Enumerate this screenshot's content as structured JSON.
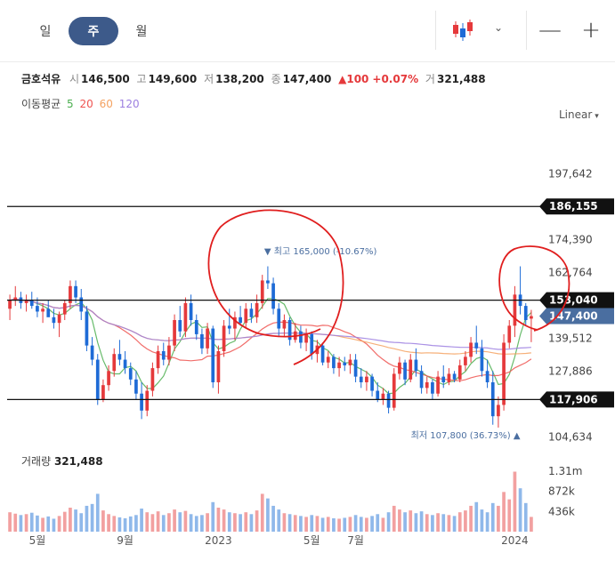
{
  "tabs": [
    {
      "label": "일",
      "active": false
    },
    {
      "label": "주",
      "active": true
    },
    {
      "label": "월",
      "active": false
    }
  ],
  "toolbar": {
    "chart_type_icon": "candlestick-icon",
    "minimize_icon": "minus-icon",
    "add_icon": "plus-icon",
    "minimize_label": "—",
    "add_label": "+",
    "chevron": "⌄"
  },
  "stock": {
    "name": "금호석유",
    "open_label": "시",
    "open": "146,500",
    "high_label": "고",
    "high": "149,600",
    "low_label": "저",
    "low": "138,200",
    "close_label": "종",
    "close": "147,400",
    "change": "▲100",
    "change_pct": "+0.07%",
    "volume_label": "거",
    "volume": "321,488"
  },
  "ma_legend": {
    "label": "이동평균",
    "items": [
      {
        "period": "5",
        "color": "#4caf50"
      },
      {
        "period": "20",
        "color": "#ef5350"
      },
      {
        "period": "60",
        "color": "#f4a261"
      },
      {
        "period": "120",
        "color": "#9c7fe0"
      }
    ]
  },
  "scale_mode": "Linear",
  "colors": {
    "up": "#e5393b",
    "down": "#1e6bd6",
    "price_tag": "#4a6ea0",
    "line_tag": "#111111",
    "vol_up": "#f2a0a0",
    "vol_down": "#8fb8ea"
  },
  "chart_data": {
    "type": "candlestick",
    "y_ticks": [
      197642,
      174390,
      162764,
      139512,
      127886,
      104634
    ],
    "y_tick_labels": [
      "197,642",
      "174,390",
      "162,764",
      "139,512",
      "127,886",
      "104,634"
    ],
    "ylim": [
      102000,
      212000
    ],
    "x_labels": [
      {
        "label": "5월",
        "index": 5
      },
      {
        "label": "9월",
        "index": 21
      },
      {
        "label": "2023",
        "index": 38
      },
      {
        "label": "5월",
        "index": 55
      },
      {
        "label": "7월",
        "index": 63
      },
      {
        "label": "2024",
        "index": 92
      }
    ],
    "horizontal_lines": [
      {
        "value": 186155,
        "label": "186,155"
      },
      {
        "value": 153040,
        "label": "153,040"
      },
      {
        "value": 117906,
        "label": "117,906"
      }
    ],
    "current_price": {
      "value": 147400,
      "label": "147,400"
    },
    "high_marker": {
      "prefix": "▼ 최고",
      "text": "165,000 (-10.67%)",
      "index": 47
    },
    "low_marker": {
      "prefix": "최저",
      "text": "107,800 (36.73%) ▲",
      "index": 93
    },
    "candles": [
      [
        150000,
        155000,
        146000,
        153000
      ],
      [
        153000,
        158000,
        151000,
        154000
      ],
      [
        154000,
        156000,
        150000,
        152000
      ],
      [
        152000,
        155000,
        149000,
        153000
      ],
      [
        153000,
        156000,
        150000,
        151000
      ],
      [
        151000,
        154000,
        147000,
        149000
      ],
      [
        149000,
        152000,
        145000,
        150000
      ],
      [
        150000,
        153000,
        148000,
        147000
      ],
      [
        147000,
        150000,
        143000,
        145000
      ],
      [
        145000,
        149000,
        140000,
        148000
      ],
      [
        148000,
        153000,
        146000,
        152000
      ],
      [
        152000,
        160000,
        150000,
        158000
      ],
      [
        158000,
        160000,
        152000,
        154000
      ],
      [
        154000,
        157000,
        146000,
        149000
      ],
      [
        149000,
        151000,
        135000,
        137000
      ],
      [
        137000,
        140000,
        130000,
        132000
      ],
      [
        132000,
        134000,
        116000,
        118000
      ],
      [
        118000,
        125000,
        117000,
        123000
      ],
      [
        123000,
        130000,
        121000,
        128000
      ],
      [
        128000,
        136000,
        126000,
        134000
      ],
      [
        134000,
        139000,
        130000,
        132000
      ],
      [
        132000,
        135000,
        127000,
        129000
      ],
      [
        129000,
        131000,
        123000,
        125000
      ],
      [
        125000,
        128000,
        118000,
        120000
      ],
      [
        120000,
        124000,
        111000,
        114000
      ],
      [
        114000,
        123000,
        112000,
        121000
      ],
      [
        121000,
        131000,
        119000,
        129000
      ],
      [
        129000,
        137000,
        127000,
        135000
      ],
      [
        135000,
        138000,
        130000,
        132000
      ],
      [
        132000,
        140000,
        130000,
        137000
      ],
      [
        137000,
        148000,
        135000,
        146000
      ],
      [
        146000,
        151000,
        140000,
        142000
      ],
      [
        142000,
        154000,
        140000,
        152000
      ],
      [
        152000,
        155000,
        144000,
        146000
      ],
      [
        146000,
        148000,
        139000,
        141000
      ],
      [
        141000,
        143000,
        134000,
        136000
      ],
      [
        136000,
        145000,
        134000,
        143000
      ],
      [
        143000,
        144000,
        122000,
        124000
      ],
      [
        124000,
        137000,
        120000,
        135000
      ],
      [
        135000,
        146000,
        133000,
        144000
      ],
      [
        144000,
        150000,
        141000,
        143000
      ],
      [
        143000,
        149000,
        139000,
        147000
      ],
      [
        147000,
        151000,
        144000,
        145000
      ],
      [
        145000,
        152000,
        143000,
        150000
      ],
      [
        150000,
        152000,
        145000,
        147000
      ],
      [
        147000,
        155000,
        145000,
        152000
      ],
      [
        152000,
        162000,
        150000,
        160000
      ],
      [
        160000,
        165000,
        157000,
        159000
      ],
      [
        159000,
        161000,
        148000,
        150000
      ],
      [
        150000,
        152000,
        140000,
        143000
      ],
      [
        143000,
        148000,
        140000,
        146000
      ],
      [
        146000,
        147000,
        137000,
        139000
      ],
      [
        139000,
        145000,
        138000,
        142000
      ],
      [
        142000,
        144000,
        136000,
        138000
      ],
      [
        138000,
        143000,
        135000,
        141000
      ],
      [
        141000,
        142000,
        132000,
        134000
      ],
      [
        134000,
        139000,
        131000,
        137000
      ],
      [
        137000,
        138000,
        130000,
        131000
      ],
      [
        131000,
        135000,
        129000,
        133000
      ],
      [
        133000,
        134000,
        127000,
        129000
      ],
      [
        129000,
        133000,
        126000,
        131000
      ],
      [
        131000,
        133000,
        128000,
        130000
      ],
      [
        130000,
        134000,
        127000,
        132000
      ],
      [
        132000,
        134000,
        124000,
        126000
      ],
      [
        126000,
        129000,
        122000,
        124000
      ],
      [
        124000,
        128000,
        121000,
        126000
      ],
      [
        126000,
        127000,
        119000,
        121000
      ],
      [
        121000,
        124000,
        117000,
        118000
      ],
      [
        118000,
        122000,
        116000,
        120000
      ],
      [
        120000,
        121000,
        113000,
        115000
      ],
      [
        115000,
        129000,
        114000,
        127000
      ],
      [
        127000,
        133000,
        125000,
        131000
      ],
      [
        131000,
        132000,
        123000,
        125000
      ],
      [
        125000,
        134000,
        124000,
        132000
      ],
      [
        132000,
        136000,
        126000,
        128000
      ],
      [
        128000,
        130000,
        120000,
        122000
      ],
      [
        122000,
        126000,
        120000,
        124000
      ],
      [
        124000,
        125000,
        118000,
        120000
      ],
      [
        120000,
        128000,
        119000,
        126000
      ],
      [
        126000,
        130000,
        122000,
        124000
      ],
      [
        124000,
        129000,
        123000,
        127000
      ],
      [
        127000,
        128000,
        124000,
        125000
      ],
      [
        125000,
        132000,
        124000,
        130000
      ],
      [
        130000,
        135000,
        128000,
        133000
      ],
      [
        133000,
        140000,
        131000,
        138000
      ],
      [
        138000,
        144000,
        134000,
        136000
      ],
      [
        136000,
        139000,
        126000,
        128000
      ],
      [
        128000,
        132000,
        122000,
        124000
      ],
      [
        124000,
        128000,
        109000,
        112000
      ],
      [
        112000,
        119000,
        108000,
        116000
      ],
      [
        116000,
        141000,
        114000,
        138000
      ],
      [
        138000,
        146000,
        136000,
        144000
      ],
      [
        144000,
        158000,
        140000,
        155000
      ],
      [
        155000,
        165000,
        148000,
        151000
      ],
      [
        151000,
        152000,
        144000,
        146000
      ],
      [
        146500,
        149600,
        138200,
        147400
      ]
    ],
    "volume_max_label": "1.31m",
    "volume_ticks": [
      {
        "value": 872000,
        "label": "872k"
      },
      {
        "value": 436000,
        "label": "436k"
      }
    ],
    "volume_max": 1310000,
    "volume_title": "거래량",
    "volume_current": "321,488",
    "volumes": [
      420,
      390,
      360,
      380,
      410,
      350,
      300,
      330,
      280,
      340,
      430,
      520,
      480,
      400,
      560,
      600,
      820,
      460,
      380,
      340,
      310,
      290,
      330,
      360,
      500,
      420,
      380,
      440,
      360,
      400,
      480,
      420,
      450,
      380,
      340,
      360,
      400,
      640,
      520,
      480,
      420,
      400,
      380,
      420,
      380,
      460,
      820,
      720,
      560,
      480,
      400,
      380,
      360,
      340,
      320,
      360,
      340,
      300,
      320,
      290,
      280,
      300,
      320,
      360,
      320,
      300,
      340,
      380,
      300,
      420,
      560,
      480,
      420,
      460,
      400,
      440,
      380,
      360,
      400,
      380,
      360,
      340,
      420,
      460,
      560,
      640,
      480,
      420,
      620,
      560,
      860,
      700,
      1300,
      940,
      620,
      320
    ]
  }
}
